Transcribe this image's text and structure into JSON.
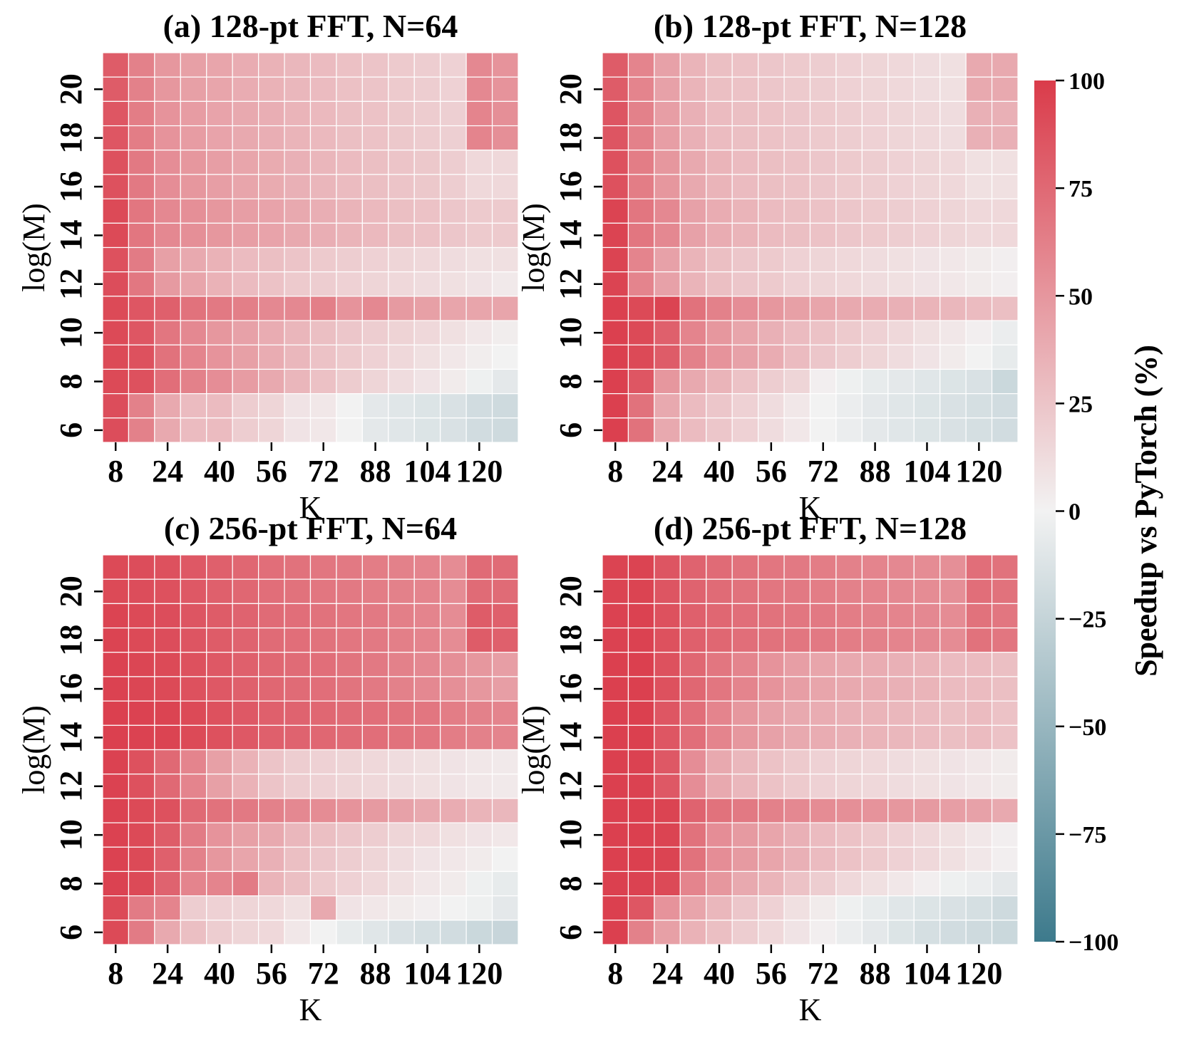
{
  "chart_data": {
    "type": "heatmap",
    "colorbar": {
      "label": "Speedup vs PyTorch (%)",
      "vmin": -100,
      "vmax": 100,
      "ticks": [
        100,
        75,
        50,
        25,
        0,
        -25,
        -50,
        -75,
        -100
      ],
      "tick_labels": [
        "100",
        "75",
        "50",
        "25",
        "0",
        "−25",
        "−50",
        "−75",
        "−100"
      ],
      "low_color": "#3d7a8c",
      "mid_color": "#f2f2f2",
      "high_color": "#da3b4a"
    },
    "k_values": [
      8,
      16,
      24,
      32,
      40,
      48,
      56,
      64,
      72,
      80,
      88,
      96,
      104,
      112,
      120,
      128
    ],
    "m_values_top_to_bottom": [
      21,
      20,
      19,
      18,
      17,
      16,
      15,
      14,
      13,
      12,
      11,
      10,
      9,
      8,
      7,
      6
    ],
    "x_tick_labels": [
      "8",
      "24",
      "40",
      "56",
      "72",
      "88",
      "104",
      "120"
    ],
    "y_tick_labels": [
      "20",
      "18",
      "16",
      "14",
      "12",
      "10",
      "8",
      "6"
    ],
    "panels": [
      {
        "title": "(a) 128-pt FFT, N=64",
        "xlabel": "K",
        "ylabel": "log(M)",
        "values": [
          [
            82,
            62,
            50,
            45,
            42,
            38,
            35,
            32,
            30,
            27,
            25,
            22,
            20,
            18,
            58,
            52
          ],
          [
            82,
            62,
            50,
            45,
            42,
            38,
            35,
            32,
            30,
            27,
            25,
            22,
            20,
            18,
            58,
            52
          ],
          [
            85,
            64,
            52,
            47,
            43,
            40,
            37,
            34,
            31,
            28,
            26,
            23,
            21,
            19,
            60,
            54
          ],
          [
            85,
            64,
            52,
            47,
            43,
            40,
            37,
            34,
            31,
            28,
            26,
            23,
            21,
            19,
            60,
            54
          ],
          [
            88,
            66,
            55,
            50,
            46,
            42,
            39,
            36,
            33,
            30,
            28,
            25,
            23,
            20,
            14,
            14
          ],
          [
            88,
            66,
            55,
            50,
            46,
            42,
            39,
            36,
            33,
            30,
            28,
            25,
            23,
            20,
            14,
            14
          ],
          [
            92,
            68,
            58,
            54,
            50,
            46,
            43,
            40,
            37,
            34,
            31,
            28,
            26,
            24,
            22,
            22
          ],
          [
            92,
            68,
            58,
            54,
            50,
            46,
            43,
            40,
            37,
            34,
            31,
            28,
            26,
            24,
            22,
            22
          ],
          [
            88,
            65,
            45,
            40,
            35,
            30,
            28,
            25,
            22,
            20,
            18,
            16,
            14,
            12,
            10,
            10
          ],
          [
            90,
            67,
            48,
            42,
            35,
            30,
            26,
            22,
            20,
            18,
            16,
            14,
            12,
            10,
            8,
            5
          ],
          [
            92,
            85,
            80,
            70,
            66,
            63,
            58,
            58,
            63,
            52,
            58,
            48,
            45,
            42,
            42,
            42
          ],
          [
            92,
            85,
            68,
            58,
            50,
            44,
            38,
            33,
            28,
            24,
            20,
            17,
            14,
            10,
            6,
            3
          ],
          [
            92,
            88,
            70,
            60,
            52,
            45,
            38,
            32,
            26,
            22,
            18,
            14,
            10,
            6,
            3,
            0
          ],
          [
            92,
            88,
            72,
            62,
            55,
            47,
            40,
            33,
            27,
            21,
            16,
            12,
            8,
            4,
            -2,
            -8
          ],
          [
            90,
            62,
            40,
            30,
            30,
            20,
            16,
            8,
            6,
            0,
            -8,
            -10,
            -12,
            -14,
            -18,
            -20
          ],
          [
            90,
            62,
            40,
            30,
            30,
            20,
            16,
            8,
            6,
            0,
            -8,
            -10,
            -12,
            -14,
            -18,
            -20
          ]
        ]
      },
      {
        "title": "(b) 128-pt FFT, N=128",
        "xlabel": "K",
        "ylabel": "log(M)",
        "values": [
          [
            82,
            60,
            44,
            34,
            28,
            26,
            24,
            22,
            20,
            18,
            16,
            14,
            12,
            10,
            40,
            40
          ],
          [
            82,
            60,
            44,
            34,
            28,
            26,
            24,
            22,
            20,
            18,
            16,
            14,
            12,
            10,
            40,
            40
          ],
          [
            86,
            62,
            46,
            36,
            30,
            28,
            26,
            24,
            22,
            20,
            18,
            16,
            14,
            12,
            36,
            36
          ],
          [
            86,
            62,
            46,
            36,
            30,
            28,
            26,
            24,
            22,
            20,
            18,
            16,
            14,
            12,
            36,
            36
          ],
          [
            88,
            64,
            50,
            40,
            34,
            30,
            28,
            26,
            24,
            22,
            20,
            18,
            16,
            14,
            10,
            10
          ],
          [
            88,
            64,
            50,
            40,
            34,
            30,
            28,
            26,
            24,
            22,
            20,
            18,
            16,
            14,
            10,
            10
          ],
          [
            95,
            68,
            58,
            44,
            38,
            34,
            30,
            28,
            26,
            24,
            22,
            20,
            18,
            16,
            14,
            14
          ],
          [
            95,
            68,
            58,
            44,
            38,
            34,
            30,
            28,
            26,
            24,
            22,
            20,
            18,
            16,
            14,
            14
          ],
          [
            95,
            60,
            44,
            34,
            28,
            24,
            22,
            18,
            16,
            14,
            12,
            10,
            8,
            6,
            4,
            2
          ],
          [
            95,
            60,
            44,
            34,
            28,
            24,
            22,
            18,
            16,
            14,
            12,
            10,
            8,
            6,
            4,
            2
          ],
          [
            97,
            92,
            95,
            70,
            62,
            55,
            50,
            45,
            42,
            40,
            38,
            36,
            34,
            32,
            30,
            28
          ],
          [
            97,
            92,
            80,
            60,
            50,
            42,
            36,
            30,
            26,
            22,
            18,
            14,
            10,
            6,
            2,
            -4
          ],
          [
            97,
            92,
            82,
            62,
            52,
            44,
            38,
            30,
            24,
            20,
            16,
            12,
            8,
            4,
            0,
            -6
          ],
          [
            97,
            85,
            50,
            40,
            34,
            26,
            20,
            16,
            2,
            -2,
            -6,
            -8,
            -10,
            -12,
            -14,
            -22
          ],
          [
            97,
            70,
            40,
            30,
            24,
            18,
            12,
            6,
            0,
            -4,
            -8,
            -10,
            -12,
            -14,
            -16,
            -18
          ],
          [
            97,
            70,
            40,
            30,
            24,
            18,
            12,
            6,
            0,
            -4,
            -8,
            -10,
            -12,
            -14,
            -16,
            -18
          ]
        ]
      },
      {
        "title": "(c) 256-pt FFT, N=64",
        "xlabel": "K",
        "ylabel": "log(M)",
        "values": [
          [
            92,
            90,
            88,
            84,
            80,
            76,
            72,
            70,
            68,
            66,
            64,
            62,
            60,
            56,
            74,
            74
          ],
          [
            92,
            90,
            88,
            84,
            80,
            76,
            72,
            70,
            68,
            66,
            64,
            62,
            60,
            56,
            74,
            74
          ],
          [
            95,
            92,
            90,
            86,
            82,
            78,
            74,
            72,
            70,
            68,
            66,
            63,
            60,
            56,
            82,
            80
          ],
          [
            95,
            92,
            90,
            86,
            82,
            78,
            74,
            72,
            70,
            68,
            66,
            63,
            60,
            56,
            82,
            80
          ],
          [
            96,
            94,
            92,
            88,
            84,
            80,
            76,
            74,
            72,
            69,
            66,
            62,
            58,
            54,
            50,
            46
          ],
          [
            96,
            94,
            92,
            88,
            84,
            80,
            76,
            74,
            72,
            69,
            66,
            62,
            58,
            54,
            50,
            46
          ],
          [
            97,
            96,
            95,
            92,
            88,
            84,
            80,
            78,
            76,
            74,
            72,
            70,
            68,
            64,
            62,
            60
          ],
          [
            97,
            96,
            95,
            92,
            88,
            84,
            80,
            78,
            76,
            74,
            72,
            70,
            68,
            64,
            62,
            60
          ],
          [
            96,
            88,
            75,
            60,
            45,
            35,
            25,
            20,
            18,
            16,
            14,
            12,
            10,
            8,
            6,
            5
          ],
          [
            96,
            88,
            75,
            60,
            45,
            35,
            25,
            20,
            18,
            16,
            14,
            12,
            10,
            8,
            6,
            5
          ],
          [
            96,
            92,
            88,
            75,
            70,
            66,
            62,
            58,
            56,
            52,
            48,
            44,
            40,
            38,
            34,
            32
          ],
          [
            96,
            92,
            82,
            65,
            52,
            45,
            40,
            32,
            28,
            24,
            20,
            16,
            14,
            10,
            8,
            6
          ],
          [
            96,
            92,
            80,
            62,
            50,
            42,
            36,
            28,
            24,
            20,
            16,
            12,
            8,
            6,
            4,
            0
          ],
          [
            96,
            92,
            78,
            60,
            60,
            65,
            34,
            28,
            22,
            18,
            14,
            10,
            6,
            4,
            -2,
            -6
          ],
          [
            92,
            65,
            60,
            20,
            18,
            16,
            14,
            10,
            40,
            8,
            6,
            4,
            2,
            0,
            -2,
            -8
          ],
          [
            92,
            65,
            40,
            28,
            20,
            16,
            14,
            6,
            0,
            -6,
            -10,
            -14,
            -16,
            -18,
            -22,
            -24
          ]
        ]
      },
      {
        "title": "(d) 256-pt FFT, N=128",
        "xlabel": "K",
        "ylabel": "log(M)",
        "values": [
          [
            95,
            95,
            86,
            78,
            74,
            70,
            68,
            66,
            64,
            62,
            60,
            58,
            56,
            54,
            72,
            70
          ],
          [
            95,
            95,
            86,
            78,
            74,
            70,
            68,
            66,
            64,
            62,
            60,
            58,
            56,
            54,
            72,
            70
          ],
          [
            96,
            96,
            88,
            80,
            76,
            72,
            70,
            68,
            66,
            64,
            62,
            60,
            58,
            56,
            70,
            68
          ],
          [
            96,
            96,
            88,
            80,
            76,
            72,
            70,
            68,
            66,
            64,
            62,
            60,
            58,
            56,
            70,
            68
          ],
          [
            97,
            97,
            88,
            76,
            68,
            60,
            52,
            46,
            42,
            40,
            38,
            36,
            34,
            30,
            30,
            28
          ],
          [
            97,
            97,
            88,
            76,
            68,
            60,
            52,
            46,
            42,
            40,
            38,
            36,
            34,
            30,
            30,
            28
          ],
          [
            97,
            97,
            85,
            72,
            60,
            50,
            44,
            40,
            38,
            36,
            34,
            32,
            30,
            28,
            30,
            26
          ],
          [
            97,
            97,
            85,
            72,
            60,
            50,
            44,
            40,
            38,
            36,
            34,
            32,
            30,
            28,
            30,
            26
          ],
          [
            97,
            96,
            84,
            55,
            40,
            32,
            26,
            22,
            18,
            16,
            14,
            12,
            10,
            8,
            6,
            4
          ],
          [
            97,
            96,
            84,
            55,
            40,
            32,
            26,
            22,
            18,
            16,
            14,
            12,
            10,
            8,
            6,
            4
          ],
          [
            97,
            97,
            95,
            78,
            70,
            66,
            62,
            58,
            56,
            54,
            52,
            50,
            48,
            46,
            44,
            40
          ],
          [
            97,
            97,
            95,
            70,
            55,
            48,
            42,
            36,
            30,
            26,
            22,
            18,
            14,
            10,
            6,
            2
          ],
          [
            97,
            97,
            95,
            70,
            55,
            48,
            42,
            36,
            30,
            26,
            22,
            18,
            14,
            10,
            6,
            2
          ],
          [
            97,
            96,
            92,
            60,
            50,
            40,
            34,
            26,
            20,
            14,
            10,
            6,
            2,
            -2,
            -4,
            -8
          ],
          [
            97,
            85,
            52,
            42,
            32,
            24,
            18,
            10,
            4,
            -2,
            -6,
            -10,
            -12,
            -14,
            -16,
            -20
          ],
          [
            97,
            62,
            45,
            35,
            28,
            20,
            14,
            8,
            2,
            -4,
            -8,
            -12,
            -16,
            -18,
            -20,
            -22
          ]
        ]
      }
    ]
  }
}
